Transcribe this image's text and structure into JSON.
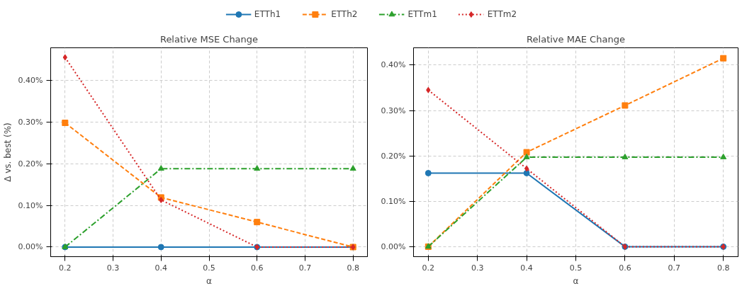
{
  "chart_data": [
    {
      "type": "line",
      "title": "Relative MSE Change",
      "xlabel": "α",
      "ylabel": "Δ vs. best (%)",
      "x": [
        0.2,
        0.4,
        0.6,
        0.8
      ],
      "xlim": [
        0.17,
        0.83
      ],
      "xticks": [
        0.2,
        0.3,
        0.4,
        0.5,
        0.6,
        0.7,
        0.8
      ],
      "ylim": [
        -0.023,
        0.478
      ],
      "yticks": [
        {
          "value": 0,
          "label": "0.00%"
        },
        {
          "value": 0.1,
          "label": "0.10%"
        },
        {
          "value": 0.2,
          "label": "0.20%"
        },
        {
          "value": 0.3,
          "label": "0.30%"
        },
        {
          "value": 0.4,
          "label": "0.40%"
        }
      ],
      "grid": true,
      "legend": "top",
      "series": [
        {
          "name": "ETTh1",
          "color": "#1f77b4",
          "marker": "circle",
          "line_style": "solid",
          "values": [
            0,
            0,
            0,
            0
          ]
        },
        {
          "name": "ETTh2",
          "color": "#ff7f0e",
          "marker": "square",
          "line_style": "dashed",
          "values": [
            0.298,
            0.119,
            0.06,
            0
          ]
        },
        {
          "name": "ETTm1",
          "color": "#2ca02c",
          "marker": "triangle",
          "line_style": "dashdot",
          "values": [
            0,
            0.188,
            0.188,
            0.188
          ]
        },
        {
          "name": "ETTm2",
          "color": "#d62728",
          "marker": "diamond",
          "line_style": "dotted",
          "values": [
            0.455,
            0.113,
            0,
            0
          ]
        }
      ]
    },
    {
      "type": "line",
      "title": "Relative MAE Change",
      "xlabel": "α",
      "x": [
        0.2,
        0.4,
        0.6,
        0.8
      ],
      "xlim": [
        0.17,
        0.83
      ],
      "xticks": [
        0.2,
        0.3,
        0.4,
        0.5,
        0.6,
        0.7,
        0.8
      ],
      "ylim": [
        -0.022,
        0.438
      ],
      "yticks": [
        {
          "value": 0,
          "label": "0.00%"
        },
        {
          "value": 0.1,
          "label": "0.10%"
        },
        {
          "value": 0.2,
          "label": "0.20%"
        },
        {
          "value": 0.3,
          "label": "0.30%"
        },
        {
          "value": 0.4,
          "label": "0.40%"
        }
      ],
      "grid": true,
      "series": [
        {
          "color": "#1f77b4",
          "marker": "circle",
          "line_style": "solid",
          "values": [
            0.162,
            0.162,
            0,
            0
          ]
        },
        {
          "color": "#ff7f0e",
          "marker": "square",
          "line_style": "dashed",
          "values": [
            0,
            0.208,
            0.311,
            0.415
          ]
        },
        {
          "color": "#2ca02c",
          "marker": "triangle",
          "line_style": "dashdot",
          "values": [
            0,
            0.197,
            0.197,
            0.197
          ]
        },
        {
          "color": "#d62728",
          "marker": "diamond",
          "line_style": "dotted",
          "values": [
            0.345,
            0.172,
            0,
            0
          ]
        }
      ]
    }
  ]
}
